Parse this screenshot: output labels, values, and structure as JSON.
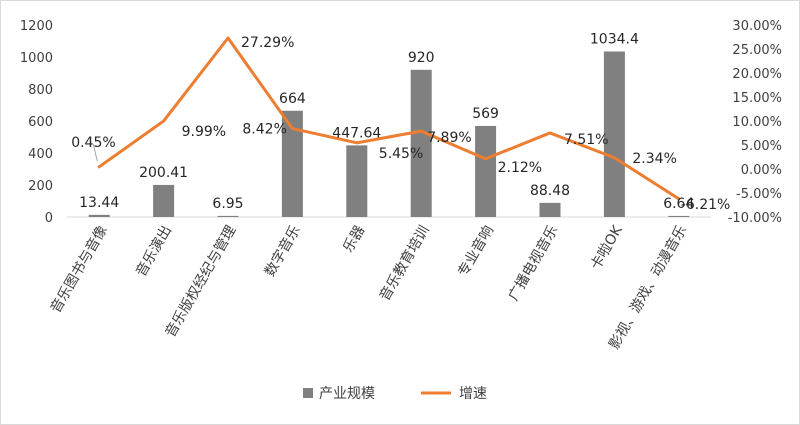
{
  "colors": {
    "bar": "#808080",
    "line": "#ED7D31"
  },
  "chart_data": {
    "type": "bar",
    "categories": [
      "音乐图书与音像",
      "音乐演出",
      "音乐版权经纪与管理",
      "数字音乐",
      "乐器",
      "音乐教育培训",
      "专业音响",
      "广播电视音乐",
      "卡啦OK",
      "影视、游戏、动漫音乐"
    ],
    "series": [
      {
        "name": "产业规模",
        "type": "bar",
        "axis": "left",
        "values": [
          13.44,
          200.41,
          6.95,
          664,
          447.64,
          920,
          569,
          88.48,
          1034.4,
          6.64
        ],
        "labels": [
          "13.44",
          "200.41",
          "6.95",
          "664",
          "447.64",
          "920",
          "569",
          "88.48",
          "1034.4",
          "6.64"
        ]
      },
      {
        "name": "增速",
        "type": "line",
        "axis": "right",
        "values": [
          0.45,
          9.99,
          27.29,
          8.42,
          5.45,
          7.89,
          2.12,
          7.51,
          2.34,
          -6.21
        ],
        "labels": [
          "0.45%",
          "9.99%",
          "27.29%",
          "8.42%",
          "5.45%",
          "7.89%",
          "2.12%",
          "7.51%",
          "2.34%",
          "-6.21%"
        ]
      }
    ],
    "y_left": {
      "ylim": [
        0,
        1200
      ],
      "ticks": [
        "0",
        "200",
        "400",
        "600",
        "800",
        "1000",
        "1200"
      ]
    },
    "y_right": {
      "ylim": [
        -10,
        30
      ],
      "ticks": [
        "-10.00%",
        "-5.00%",
        "0.00%",
        "5.00%",
        "10.00%",
        "15.00%",
        "20.00%",
        "25.00%",
        "30.00%"
      ]
    },
    "grid": false,
    "legend": "bottom-center"
  }
}
